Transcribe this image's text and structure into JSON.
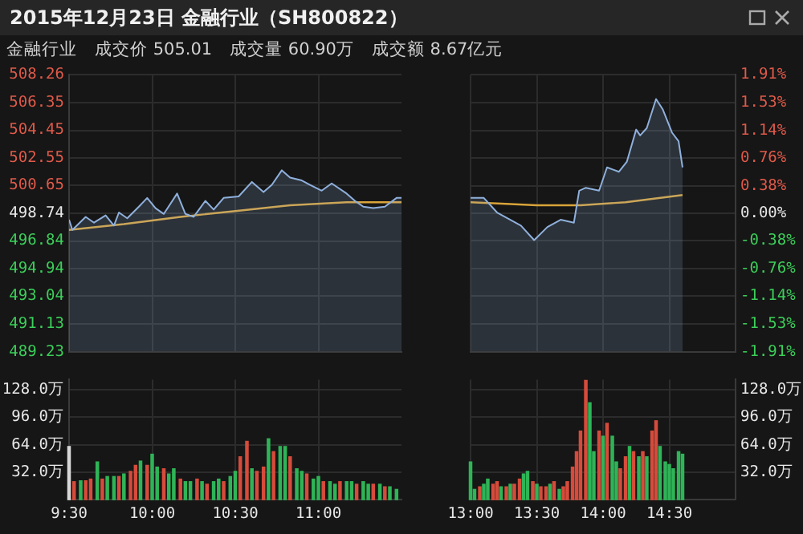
{
  "chart_data": [
    {
      "type": "area",
      "title": "2015年12月23日 金融行业（SH800822）",
      "subtitle": "金融行业　成交价 505.01　成交量 60.90万　成交额 8.67亿元",
      "xlim": [
        9.5,
        11.5
      ],
      "xticks": [
        9.5,
        10,
        10.5,
        11
      ],
      "ylim": [
        489.23,
        508.26
      ],
      "yticks": [
        508.26,
        506.35,
        504.45,
        502.55,
        500.65,
        498.74,
        496.84,
        494.94,
        493.04,
        491.13,
        489.23
      ],
      "tick_labels": "y",
      "grid": true,
      "series": [
        {
          "type": "area",
          "color": "#8fb0dc",
          "x": [
            9.5,
            9.52,
            9.6,
            9.65,
            9.72,
            9.77,
            9.8,
            9.85,
            9.92,
            9.97,
            10.02,
            10.07,
            10.15,
            10.2,
            10.25,
            10.32,
            10.37,
            10.43,
            10.52,
            10.6,
            10.67,
            10.72,
            10.78,
            10.83,
            10.9,
            10.95,
            11.02,
            11.08,
            11.17,
            11.22,
            11.27,
            11.33,
            11.4,
            11.47,
            11.5
          ],
          "values": [
            498.3,
            497.6,
            498.5,
            498.1,
            498.6,
            497.9,
            498.8,
            498.4,
            499.2,
            499.8,
            499.1,
            498.7,
            500.1,
            498.7,
            498.5,
            499.6,
            499.0,
            499.8,
            499.9,
            500.9,
            500.2,
            500.7,
            501.7,
            501.2,
            501.0,
            500.7,
            500.3,
            500.8,
            500.1,
            499.6,
            499.2,
            499.1,
            499.2,
            499.8,
            499.8
          ]
        },
        {
          "type": "line",
          "color": "#d9a43a",
          "x": [
            9.5,
            9.83,
            10.17,
            10.5,
            10.83,
            11.17,
            11.5
          ],
          "values": [
            497.6,
            498.0,
            498.5,
            498.9,
            499.3,
            499.5,
            499.5
          ]
        }
      ]
    },
    {
      "type": "area",
      "xlim": [
        13,
        15
      ],
      "xticks": [
        13,
        13.5,
        14,
        14.5
      ],
      "ylim": [
        489.23,
        508.26
      ],
      "y2lim": [
        -1.91,
        1.91
      ],
      "y2ticks": [
        {
          "value": 1.91,
          "label": "1.91%"
        },
        {
          "value": 1.53,
          "label": "1.53%"
        },
        {
          "value": 1.14,
          "label": "1.14%"
        },
        {
          "value": 0.76,
          "label": "0.76%"
        },
        {
          "value": 0.38,
          "label": "0.38%"
        },
        {
          "value": 0,
          "label": "0.00%"
        },
        {
          "value": -0.38,
          "label": "-0.38%"
        },
        {
          "value": -0.76,
          "label": "-0.76%"
        },
        {
          "value": -1.14,
          "label": "-1.14%"
        },
        {
          "value": -1.53,
          "label": "-1.53%"
        },
        {
          "value": -1.91,
          "label": "-1.91%"
        }
      ],
      "tick_labels": "y",
      "grid": true,
      "series": [
        {
          "type": "area",
          "color": "#8fb0dc",
          "x": [
            13,
            13.1,
            13.2,
            13.3,
            13.38,
            13.48,
            13.58,
            13.68,
            13.78,
            13.82,
            13.87,
            13.97,
            14.03,
            14.12,
            14.18,
            14.25,
            14.28,
            14.33,
            14.4,
            14.45,
            14.52,
            14.57,
            14.6
          ],
          "values": [
            499.8,
            499.8,
            498.8,
            498.3,
            497.9,
            496.9,
            497.8,
            498.3,
            498.1,
            500.3,
            500.5,
            500.3,
            501.9,
            501.6,
            502.3,
            504.5,
            504.1,
            504.6,
            506.6,
            505.9,
            504.3,
            503.7,
            501.9
          ]
        },
        {
          "type": "line",
          "color": "#d9a43a",
          "x": [
            13,
            13.5,
            13.83,
            14.17,
            14.6
          ],
          "values": [
            499.5,
            499.3,
            499.3,
            499.5,
            500.0
          ]
        }
      ]
    },
    {
      "type": "bar",
      "xlim": [
        9.5,
        11.5
      ],
      "xticks": [
        {
          "value": 9.5,
          "label": "9:30"
        },
        {
          "value": 10,
          "label": "10:00"
        },
        {
          "value": 10.5,
          "label": "10:30"
        },
        {
          "value": 11,
          "label": "11:00"
        }
      ],
      "ylim": [
        0,
        140
      ],
      "yticks": [
        {
          "value": 32,
          "label": "32.0万"
        },
        {
          "value": 64,
          "label": "64.0万"
        },
        {
          "value": 96,
          "label": "96.0万"
        },
        {
          "value": 128,
          "label": "128.0万"
        }
      ],
      "grid": true,
      "x": [
        9.5,
        9.53,
        9.57,
        9.6,
        9.63,
        9.67,
        9.7,
        9.73,
        9.77,
        9.8,
        9.83,
        9.87,
        9.9,
        9.93,
        9.97,
        10,
        10.03,
        10.07,
        10.1,
        10.13,
        10.17,
        10.2,
        10.23,
        10.27,
        10.3,
        10.33,
        10.37,
        10.4,
        10.43,
        10.47,
        10.5,
        10.53,
        10.57,
        10.6,
        10.63,
        10.67,
        10.7,
        10.73,
        10.77,
        10.8,
        10.83,
        10.87,
        10.9,
        10.93,
        10.97,
        11,
        11.03,
        11.07,
        11.1,
        11.13,
        11.17,
        11.2,
        11.23,
        11.27,
        11.3,
        11.33,
        11.37,
        11.4,
        11.43,
        11.47
      ],
      "values": [
        62,
        21,
        22,
        22,
        24,
        44,
        24,
        27,
        27,
        27,
        30,
        33,
        40,
        45,
        40,
        53,
        38,
        36,
        30,
        36,
        24,
        21,
        21,
        24,
        21,
        18,
        21,
        24,
        21,
        27,
        33,
        50,
        68,
        36,
        33,
        38,
        71,
        56,
        62,
        62,
        50,
        36,
        33,
        30,
        24,
        27,
        21,
        21,
        18,
        21,
        21,
        21,
        18,
        21,
        18,
        18,
        18,
        15,
        15,
        12
      ],
      "colors": [
        "#d8d8d8",
        "#d64b3b",
        "#2fb457",
        "#d64b3b",
        "#d64b3b",
        "#2fb457",
        "#d64b3b",
        "#2fb457",
        "#2fb457",
        "#d64b3b",
        "#2fb457",
        "#d64b3b",
        "#d64b3b",
        "#2fb457",
        "#d64b3b",
        "#2fb457",
        "#2fb457",
        "#d64b3b",
        "#2fb457",
        "#2fb457",
        "#d64b3b",
        "#2fb457",
        "#2fb457",
        "#d64b3b",
        "#2fb457",
        "#d64b3b",
        "#2fb457",
        "#2fb457",
        "#d64b3b",
        "#2fb457",
        "#2fb457",
        "#d64b3b",
        "#d64b3b",
        "#2fb457",
        "#d64b3b",
        "#d64b3b",
        "#2fb457",
        "#d64b3b",
        "#2fb457",
        "#2fb457",
        "#d64b3b",
        "#2fb457",
        "#2fb457",
        "#d64b3b",
        "#2fb457",
        "#2fb457",
        "#d64b3b",
        "#2fb457",
        "#2fb457",
        "#d64b3b",
        "#2fb457",
        "#2fb457",
        "#d64b3b",
        "#2fb457",
        "#2fb457",
        "#d64b3b",
        "#2fb457",
        "#d64b3b",
        "#2fb457",
        "#2fb457"
      ]
    },
    {
      "type": "bar",
      "xlim": [
        13,
        15
      ],
      "xticks": [
        {
          "value": 13,
          "label": "13:00"
        },
        {
          "value": 13.5,
          "label": "13:30"
        },
        {
          "value": 14,
          "label": "14:00"
        },
        {
          "value": 14.5,
          "label": "14:30"
        }
      ],
      "ylim": [
        0,
        140
      ],
      "y2lim": [
        0,
        140
      ],
      "y2ticks": [
        {
          "value": 32,
          "label": "32.0万"
        },
        {
          "value": 64,
          "label": "64.0万"
        },
        {
          "value": 96,
          "label": "96.0万"
        },
        {
          "value": 128,
          "label": "128.0万"
        }
      ],
      "grid": true,
      "x": [
        13,
        13.03,
        13.07,
        13.1,
        13.13,
        13.17,
        13.2,
        13.23,
        13.27,
        13.3,
        13.33,
        13.37,
        13.4,
        13.43,
        13.47,
        13.5,
        13.53,
        13.57,
        13.6,
        13.63,
        13.67,
        13.7,
        13.73,
        13.77,
        13.8,
        13.83,
        13.87,
        13.9,
        13.93,
        13.97,
        14,
        14.03,
        14.07,
        14.1,
        14.13,
        14.17,
        14.2,
        14.23,
        14.27,
        14.3,
        14.33,
        14.37,
        14.4,
        14.43,
        14.47,
        14.5,
        14.53,
        14.57,
        14.6
      ],
      "values": [
        44,
        12,
        15,
        18,
        24,
        18,
        21,
        15,
        15,
        18,
        18,
        24,
        30,
        33,
        21,
        18,
        15,
        15,
        18,
        21,
        12,
        15,
        21,
        38,
        56,
        80,
        139,
        113,
        56,
        80,
        74,
        89,
        74,
        44,
        36,
        50,
        62,
        56,
        50,
        56,
        50,
        80,
        92,
        62,
        44,
        41,
        36,
        56,
        53
      ],
      "colors": [
        "#2fb457",
        "#2fb457",
        "#d64b3b",
        "#2fb457",
        "#2fb457",
        "#d64b3b",
        "#d64b3b",
        "#2fb457",
        "#d64b3b",
        "#2fb457",
        "#d64b3b",
        "#d64b3b",
        "#2fb457",
        "#2fb457",
        "#d64b3b",
        "#2fb457",
        "#d64b3b",
        "#d64b3b",
        "#2fb457",
        "#d64b3b",
        "#2fb457",
        "#d64b3b",
        "#d64b3b",
        "#d64b3b",
        "#d64b3b",
        "#d64b3b",
        "#d64b3b",
        "#2fb457",
        "#2fb457",
        "#d64b3b",
        "#2fb457",
        "#d64b3b",
        "#2fb457",
        "#2fb457",
        "#d64b3b",
        "#d64b3b",
        "#2fb457",
        "#d64b3b",
        "#2fb457",
        "#d64b3b",
        "#2fb457",
        "#d64b3b",
        "#d64b3b",
        "#2fb457",
        "#2fb457",
        "#2fb457",
        "#2fb457",
        "#2fb457",
        "#2fb457"
      ]
    }
  ]
}
